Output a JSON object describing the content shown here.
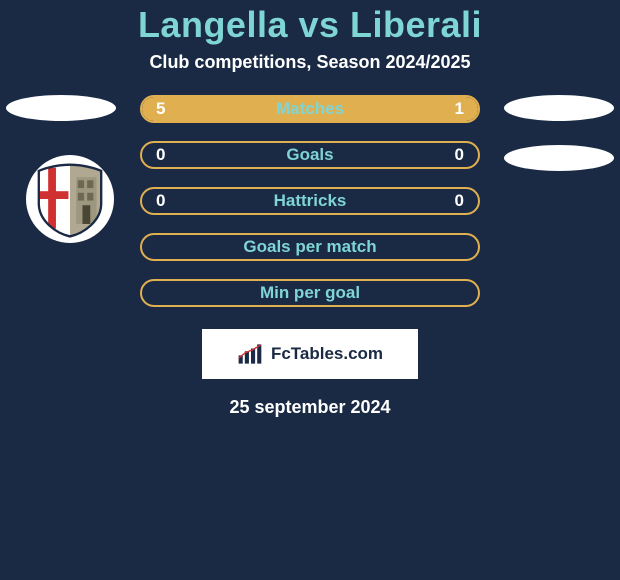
{
  "header": {
    "title": "Langella vs Liberali",
    "subtitle": "Club competitions, Season 2024/2025",
    "title_color": "#7fd4d4",
    "subtitle_color": "#ffffff"
  },
  "stats": {
    "bar_border_color": "#e0b050",
    "bar_fill_color": "#e0b050",
    "label_color": "#7fd4d4",
    "value_color": "#ffffff",
    "rows": [
      {
        "label": "Matches",
        "left": "5",
        "right": "1",
        "left_pct": 80,
        "right_pct": 20,
        "show_values": true
      },
      {
        "label": "Goals",
        "left": "0",
        "right": "0",
        "left_pct": 0,
        "right_pct": 0,
        "show_values": true
      },
      {
        "label": "Hattricks",
        "left": "0",
        "right": "0",
        "left_pct": 0,
        "right_pct": 0,
        "show_values": true
      },
      {
        "label": "Goals per match",
        "left": "",
        "right": "",
        "left_pct": 0,
        "right_pct": 0,
        "show_values": false
      },
      {
        "label": "Min per goal",
        "left": "",
        "right": "",
        "left_pct": 0,
        "right_pct": 0,
        "show_values": false
      }
    ]
  },
  "side_badges": {
    "color": "#ffffff",
    "left_rows": [
      1,
      2
    ],
    "right_rows": [
      1,
      2
    ]
  },
  "club_crest": {
    "visible": true,
    "shield_left_color": "#d03030",
    "shield_right_color": "#b0a890",
    "cross_color": "#ffffff",
    "border_color": "#1a2a44"
  },
  "branding": {
    "text": "FcTables.com",
    "box_bg": "#ffffff",
    "text_color": "#1a2a44",
    "chart_bar_color": "#1a2a44",
    "chart_line_color": "#d03030"
  },
  "footer": {
    "date": "25 september 2024",
    "color": "#ffffff"
  },
  "background_color": "#1a2a44"
}
